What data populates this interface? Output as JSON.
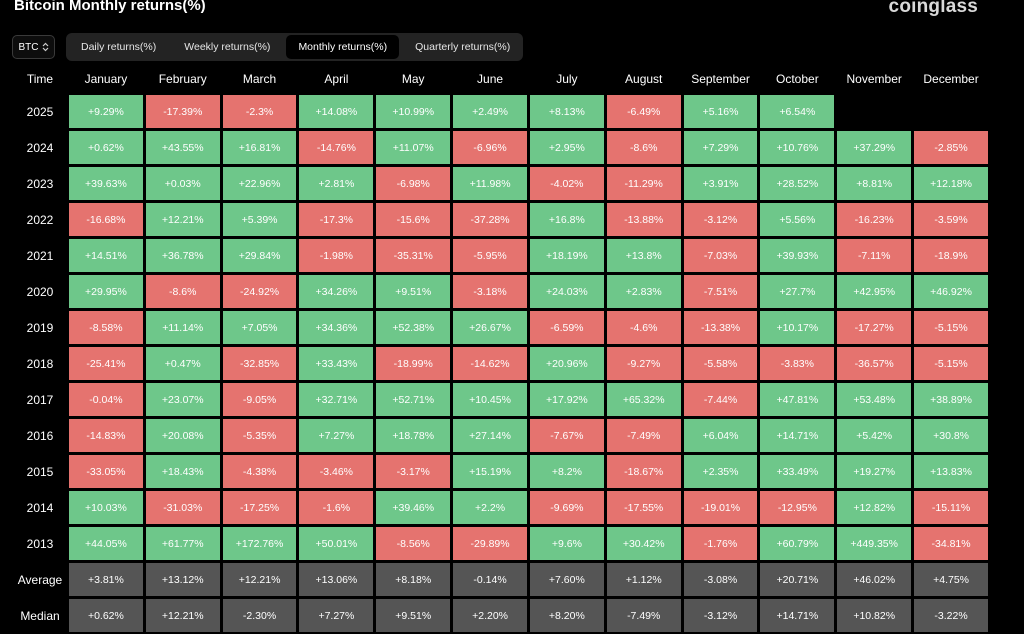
{
  "header": {
    "title": "Bitcoin Monthly returns(%)",
    "brand": "coinglass"
  },
  "asset_select": {
    "value": "BTC"
  },
  "tabs": [
    {
      "label": "Daily returns(%)",
      "active": false
    },
    {
      "label": "Weekly returns(%)",
      "active": false
    },
    {
      "label": "Monthly returns(%)",
      "active": true
    },
    {
      "label": "Quarterly returns(%)",
      "active": false
    }
  ],
  "colors": {
    "positive": "#6ec78a",
    "negative": "#e5736f",
    "stat": "#555555"
  },
  "table": {
    "corner_label": "Time",
    "months": [
      "January",
      "February",
      "March",
      "April",
      "May",
      "June",
      "July",
      "August",
      "September",
      "October",
      "November",
      "December"
    ],
    "rows": [
      {
        "label": "2025",
        "values": [
          "+9.29%",
          "-17.39%",
          "-2.3%",
          "+14.08%",
          "+10.99%",
          "+2.49%",
          "+8.13%",
          "-6.49%",
          "+5.16%",
          "+6.54%",
          "",
          ""
        ]
      },
      {
        "label": "2024",
        "values": [
          "+0.62%",
          "+43.55%",
          "+16.81%",
          "-14.76%",
          "+11.07%",
          "-6.96%",
          "+2.95%",
          "-8.6%",
          "+7.29%",
          "+10.76%",
          "+37.29%",
          "-2.85%"
        ]
      },
      {
        "label": "2023",
        "values": [
          "+39.63%",
          "+0.03%",
          "+22.96%",
          "+2.81%",
          "-6.98%",
          "+11.98%",
          "-4.02%",
          "-11.29%",
          "+3.91%",
          "+28.52%",
          "+8.81%",
          "+12.18%"
        ]
      },
      {
        "label": "2022",
        "values": [
          "-16.68%",
          "+12.21%",
          "+5.39%",
          "-17.3%",
          "-15.6%",
          "-37.28%",
          "+16.8%",
          "-13.88%",
          "-3.12%",
          "+5.56%",
          "-16.23%",
          "-3.59%"
        ]
      },
      {
        "label": "2021",
        "values": [
          "+14.51%",
          "+36.78%",
          "+29.84%",
          "-1.98%",
          "-35.31%",
          "-5.95%",
          "+18.19%",
          "+13.8%",
          "-7.03%",
          "+39.93%",
          "-7.11%",
          "-18.9%"
        ]
      },
      {
        "label": "2020",
        "values": [
          "+29.95%",
          "-8.6%",
          "-24.92%",
          "+34.26%",
          "+9.51%",
          "-3.18%",
          "+24.03%",
          "+2.83%",
          "-7.51%",
          "+27.7%",
          "+42.95%",
          "+46.92%"
        ]
      },
      {
        "label": "2019",
        "values": [
          "-8.58%",
          "+11.14%",
          "+7.05%",
          "+34.36%",
          "+52.38%",
          "+26.67%",
          "-6.59%",
          "-4.6%",
          "-13.38%",
          "+10.17%",
          "-17.27%",
          "-5.15%"
        ]
      },
      {
        "label": "2018",
        "values": [
          "-25.41%",
          "+0.47%",
          "-32.85%",
          "+33.43%",
          "-18.99%",
          "-14.62%",
          "+20.96%",
          "-9.27%",
          "-5.58%",
          "-3.83%",
          "-36.57%",
          "-5.15%"
        ]
      },
      {
        "label": "2017",
        "values": [
          "-0.04%",
          "+23.07%",
          "-9.05%",
          "+32.71%",
          "+52.71%",
          "+10.45%",
          "+17.92%",
          "+65.32%",
          "-7.44%",
          "+47.81%",
          "+53.48%",
          "+38.89%"
        ]
      },
      {
        "label": "2016",
        "values": [
          "-14.83%",
          "+20.08%",
          "-5.35%",
          "+7.27%",
          "+18.78%",
          "+27.14%",
          "-7.67%",
          "-7.49%",
          "+6.04%",
          "+14.71%",
          "+5.42%",
          "+30.8%"
        ]
      },
      {
        "label": "2015",
        "values": [
          "-33.05%",
          "+18.43%",
          "-4.38%",
          "-3.46%",
          "-3.17%",
          "+15.19%",
          "+8.2%",
          "-18.67%",
          "+2.35%",
          "+33.49%",
          "+19.27%",
          "+13.83%"
        ]
      },
      {
        "label": "2014",
        "values": [
          "+10.03%",
          "-31.03%",
          "-17.25%",
          "-1.6%",
          "+39.46%",
          "+2.2%",
          "-9.69%",
          "-17.55%",
          "-19.01%",
          "-12.95%",
          "+12.82%",
          "-15.11%"
        ]
      },
      {
        "label": "2013",
        "values": [
          "+44.05%",
          "+61.77%",
          "+172.76%",
          "+50.01%",
          "-8.56%",
          "-29.89%",
          "+9.6%",
          "+30.42%",
          "-1.76%",
          "+60.79%",
          "+449.35%",
          "-34.81%"
        ]
      }
    ],
    "stats": [
      {
        "label": "Average",
        "values": [
          "+3.81%",
          "+13.12%",
          "+12.21%",
          "+13.06%",
          "+8.18%",
          "-0.14%",
          "+7.60%",
          "+1.12%",
          "-3.08%",
          "+20.71%",
          "+46.02%",
          "+4.75%"
        ]
      },
      {
        "label": "Median",
        "values": [
          "+0.62%",
          "+12.21%",
          "-2.30%",
          "+7.27%",
          "+9.51%",
          "+2.20%",
          "+8.20%",
          "-7.49%",
          "-3.12%",
          "+14.71%",
          "+10.82%",
          "-3.22%"
        ]
      }
    ]
  }
}
